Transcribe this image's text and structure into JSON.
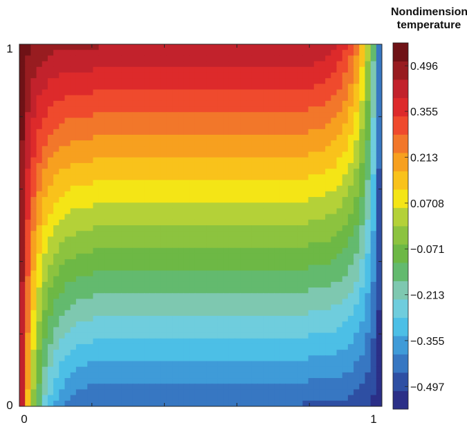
{
  "colorbar": {
    "title_line1": "Nondimensional",
    "title_line2": "temperature",
    "tick_labels": [
      "0.496",
      "0.355",
      "0.213",
      "0.0708",
      "−0.071",
      "−0.213",
      "−0.355",
      "−0.497"
    ],
    "tick_values": [
      0.496,
      0.355,
      0.213,
      0.0708,
      -0.071,
      -0.213,
      -0.355,
      -0.497
    ],
    "range": [
      -0.567,
      0.567
    ],
    "colors_bottom_to_top": [
      "#2b2f87",
      "#2e4fa3",
      "#3777c2",
      "#3f9bd8",
      "#4cbfe6",
      "#6fcddd",
      "#7ec8b0",
      "#63ba6e",
      "#6db845",
      "#8cc33f",
      "#b4d138",
      "#f4e516",
      "#f9c21b",
      "#f7a01f",
      "#f2772a",
      "#ef4a2d",
      "#dd2a2b",
      "#c2222c",
      "#981c20",
      "#6f1216"
    ]
  },
  "chart_data": {
    "type": "heatmap",
    "title": "",
    "xlabel": "",
    "ylabel": "",
    "xlim": [
      0,
      1
    ],
    "ylim": [
      0,
      1
    ],
    "x_tick_labels": [
      "0",
      "1"
    ],
    "y_tick_labels": [
      "0",
      "1"
    ],
    "value_range": [
      -0.567,
      0.567
    ],
    "grid": false,
    "legend": "colorbar-right"
  }
}
